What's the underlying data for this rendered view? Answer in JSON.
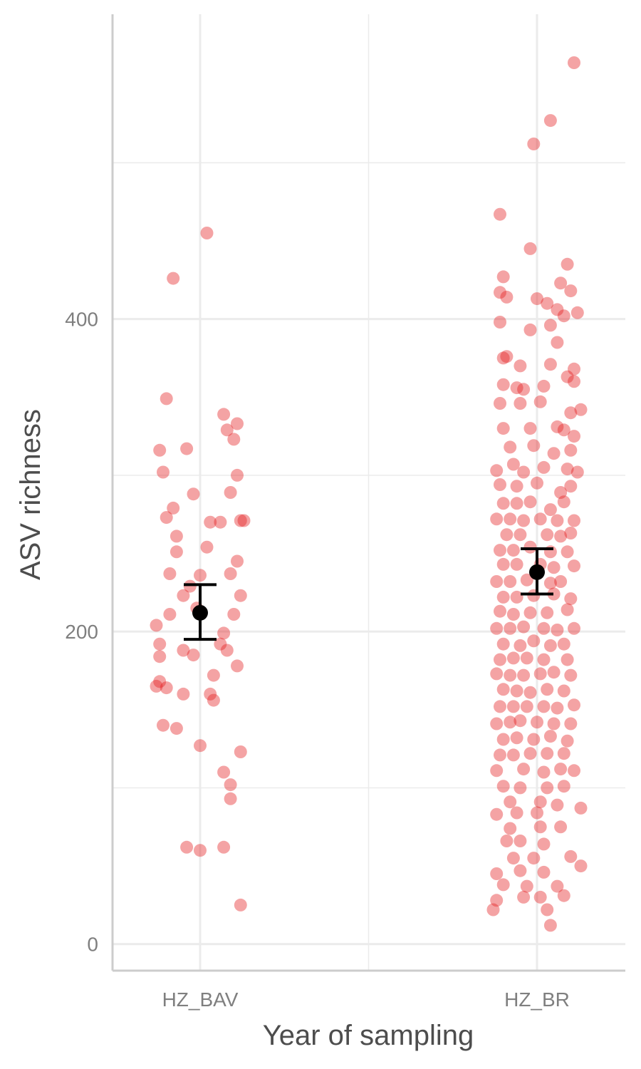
{
  "chart_data": {
    "type": "scatter",
    "xlabel": "Year of sampling",
    "ylabel": "ASV richness",
    "categories": [
      "HZ_BAV",
      "HZ_BR"
    ],
    "ylim": [
      -17,
      595
    ],
    "y_ticks": [
      0,
      200,
      400
    ],
    "grid": true,
    "colors": {
      "points": "#e41a1c",
      "error_bar": "#000000",
      "grid": "#ebebeb",
      "axis": "#cccccc"
    },
    "summary": [
      {
        "category": "HZ_BAV",
        "mean": 212,
        "ci_low": 195,
        "ci_high": 230
      },
      {
        "category": "HZ_BR",
        "mean": 238,
        "ci_low": 224,
        "ci_high": 253
      }
    ],
    "series": [
      {
        "category": "HZ_BAV",
        "points": [
          [
            0.02,
            455
          ],
          [
            -0.08,
            426
          ],
          [
            -0.1,
            349
          ],
          [
            0.07,
            339
          ],
          [
            0.11,
            333
          ],
          [
            0.08,
            329
          ],
          [
            0.1,
            323
          ],
          [
            -0.12,
            316
          ],
          [
            -0.04,
            317
          ],
          [
            0.11,
            300
          ],
          [
            -0.11,
            302
          ],
          [
            -0.02,
            288
          ],
          [
            0.09,
            289
          ],
          [
            -0.08,
            279
          ],
          [
            -0.1,
            273
          ],
          [
            0.03,
            270
          ],
          [
            0.06,
            270
          ],
          [
            0.12,
            271
          ],
          [
            0.13,
            271
          ],
          [
            -0.07,
            261
          ],
          [
            0.02,
            254
          ],
          [
            -0.07,
            251
          ],
          [
            0.11,
            245
          ],
          [
            -0.09,
            237
          ],
          [
            0.0,
            236
          ],
          [
            0.09,
            237
          ],
          [
            -0.03,
            229
          ],
          [
            0.12,
            223
          ],
          [
            -0.05,
            223
          ],
          [
            -0.01,
            215
          ],
          [
            -0.09,
            211
          ],
          [
            0.1,
            211
          ],
          [
            -0.13,
            204
          ],
          [
            0.07,
            199
          ],
          [
            -0.12,
            192
          ],
          [
            0.06,
            192
          ],
          [
            -0.05,
            188
          ],
          [
            0.08,
            188
          ],
          [
            -0.12,
            184
          ],
          [
            -0.02,
            185
          ],
          [
            0.11,
            178
          ],
          [
            0.04,
            172
          ],
          [
            -0.12,
            168
          ],
          [
            -0.13,
            165
          ],
          [
            -0.1,
            164
          ],
          [
            -0.05,
            160
          ],
          [
            0.03,
            160
          ],
          [
            0.04,
            156
          ],
          [
            -0.11,
            140
          ],
          [
            -0.07,
            138
          ],
          [
            0.0,
            127
          ],
          [
            0.12,
            123
          ],
          [
            0.07,
            110
          ],
          [
            0.09,
            102
          ],
          [
            0.09,
            93
          ],
          [
            -0.04,
            62
          ],
          [
            0.0,
            60
          ],
          [
            0.07,
            62
          ],
          [
            0.12,
            25
          ]
        ]
      },
      {
        "category": "HZ_BR",
        "points": [
          [
            0.11,
            564
          ],
          [
            0.04,
            527
          ],
          [
            -0.01,
            512
          ],
          [
            -0.11,
            467
          ],
          [
            -0.02,
            445
          ],
          [
            0.09,
            435
          ],
          [
            -0.1,
            427
          ],
          [
            0.07,
            423
          ],
          [
            -0.11,
            417
          ],
          [
            -0.09,
            414
          ],
          [
            0.0,
            413
          ],
          [
            0.1,
            418
          ],
          [
            0.03,
            410
          ],
          [
            0.06,
            406
          ],
          [
            0.08,
            402
          ],
          [
            0.12,
            404
          ],
          [
            -0.11,
            398
          ],
          [
            0.04,
            396
          ],
          [
            -0.02,
            393
          ],
          [
            0.06,
            385
          ],
          [
            -0.1,
            375
          ],
          [
            -0.09,
            376
          ],
          [
            -0.05,
            370
          ],
          [
            0.04,
            371
          ],
          [
            0.11,
            368
          ],
          [
            -0.1,
            358
          ],
          [
            -0.06,
            356
          ],
          [
            -0.04,
            355
          ],
          [
            0.02,
            357
          ],
          [
            0.09,
            363
          ],
          [
            0.11,
            360
          ],
          [
            -0.11,
            346
          ],
          [
            -0.05,
            346
          ],
          [
            0.01,
            347
          ],
          [
            0.1,
            340
          ],
          [
            0.13,
            342
          ],
          [
            -0.1,
            330
          ],
          [
            -0.02,
            330
          ],
          [
            0.06,
            331
          ],
          [
            0.08,
            329
          ],
          [
            0.11,
            325
          ],
          [
            -0.08,
            318
          ],
          [
            -0.01,
            319
          ],
          [
            0.05,
            314
          ],
          [
            0.1,
            316
          ],
          [
            -0.12,
            303
          ],
          [
            -0.07,
            307
          ],
          [
            -0.04,
            302
          ],
          [
            0.02,
            305
          ],
          [
            0.09,
            304
          ],
          [
            0.12,
            302
          ],
          [
            -0.11,
            294
          ],
          [
            -0.06,
            293
          ],
          [
            0.0,
            295
          ],
          [
            0.07,
            289
          ],
          [
            0.1,
            293
          ],
          [
            -0.1,
            282
          ],
          [
            -0.06,
            282
          ],
          [
            -0.02,
            283
          ],
          [
            0.04,
            278
          ],
          [
            0.08,
            283
          ],
          [
            -0.12,
            272
          ],
          [
            -0.08,
            272
          ],
          [
            -0.04,
            271
          ],
          [
            0.01,
            272
          ],
          [
            0.06,
            271
          ],
          [
            0.11,
            271
          ],
          [
            -0.09,
            262
          ],
          [
            -0.05,
            262
          ],
          [
            0.03,
            262
          ],
          [
            0.07,
            261
          ],
          [
            0.1,
            263
          ],
          [
            -0.11,
            252
          ],
          [
            -0.07,
            252
          ],
          [
            -0.02,
            254
          ],
          [
            0.04,
            251
          ],
          [
            0.09,
            251
          ],
          [
            -0.1,
            243
          ],
          [
            -0.06,
            243
          ],
          [
            0.01,
            243
          ],
          [
            0.05,
            241
          ],
          [
            0.11,
            242
          ],
          [
            -0.12,
            232
          ],
          [
            -0.08,
            232
          ],
          [
            -0.03,
            233
          ],
          [
            0.04,
            231
          ],
          [
            0.07,
            232
          ],
          [
            -0.1,
            222
          ],
          [
            -0.06,
            222
          ],
          [
            -0.01,
            223
          ],
          [
            0.05,
            224
          ],
          [
            0.1,
            221
          ],
          [
            -0.11,
            213
          ],
          [
            -0.07,
            211
          ],
          [
            -0.02,
            212
          ],
          [
            0.03,
            212
          ],
          [
            0.09,
            214
          ],
          [
            -0.12,
            202
          ],
          [
            -0.08,
            202
          ],
          [
            -0.04,
            203
          ],
          [
            0.02,
            202
          ],
          [
            0.06,
            201
          ],
          [
            0.11,
            202
          ],
          [
            -0.1,
            192
          ],
          [
            -0.05,
            191
          ],
          [
            -0.01,
            194
          ],
          [
            0.04,
            191
          ],
          [
            0.08,
            192
          ],
          [
            -0.11,
            182
          ],
          [
            -0.07,
            183
          ],
          [
            -0.03,
            183
          ],
          [
            0.02,
            182
          ],
          [
            0.09,
            182
          ],
          [
            -0.12,
            173
          ],
          [
            -0.08,
            172
          ],
          [
            -0.04,
            172
          ],
          [
            0.01,
            173
          ],
          [
            0.05,
            174
          ],
          [
            0.1,
            172
          ],
          [
            -0.1,
            163
          ],
          [
            -0.06,
            162
          ],
          [
            -0.02,
            161
          ],
          [
            0.03,
            163
          ],
          [
            0.08,
            162
          ],
          [
            -0.11,
            152
          ],
          [
            -0.07,
            152
          ],
          [
            -0.03,
            152
          ],
          [
            0.02,
            152
          ],
          [
            0.06,
            151
          ],
          [
            0.11,
            153
          ],
          [
            -0.12,
            141
          ],
          [
            -0.08,
            142
          ],
          [
            -0.05,
            143
          ],
          [
            0.0,
            142
          ],
          [
            0.05,
            141
          ],
          [
            0.1,
            141
          ],
          [
            -0.1,
            131
          ],
          [
            -0.06,
            132
          ],
          [
            -0.01,
            131
          ],
          [
            0.04,
            133
          ],
          [
            0.09,
            130
          ],
          [
            -0.11,
            121
          ],
          [
            -0.07,
            121
          ],
          [
            -0.02,
            122
          ],
          [
            0.03,
            122
          ],
          [
            0.08,
            122
          ],
          [
            -0.12,
            111
          ],
          [
            -0.04,
            112
          ],
          [
            0.02,
            110
          ],
          [
            0.07,
            112
          ],
          [
            0.11,
            111
          ],
          [
            -0.1,
            101
          ],
          [
            -0.05,
            100
          ],
          [
            0.03,
            100
          ],
          [
            0.08,
            101
          ],
          [
            -0.08,
            91
          ],
          [
            0.01,
            91
          ],
          [
            0.06,
            89
          ],
          [
            -0.12,
            83
          ],
          [
            -0.06,
            84
          ],
          [
            0.0,
            84
          ],
          [
            0.13,
            87
          ],
          [
            -0.08,
            74
          ],
          [
            0.01,
            75
          ],
          [
            0.07,
            75
          ],
          [
            -0.09,
            66
          ],
          [
            -0.05,
            66
          ],
          [
            0.02,
            64
          ],
          [
            -0.07,
            55
          ],
          [
            -0.01,
            55
          ],
          [
            0.1,
            56
          ],
          [
            -0.12,
            45
          ],
          [
            -0.05,
            47
          ],
          [
            0.02,
            46
          ],
          [
            0.13,
            50
          ],
          [
            -0.1,
            38
          ],
          [
            -0.03,
            37
          ],
          [
            0.06,
            37
          ],
          [
            -0.12,
            28
          ],
          [
            -0.04,
            30
          ],
          [
            0.01,
            30
          ],
          [
            0.08,
            31
          ],
          [
            -0.13,
            22
          ],
          [
            0.03,
            22
          ],
          [
            0.04,
            12
          ]
        ]
      }
    ]
  }
}
